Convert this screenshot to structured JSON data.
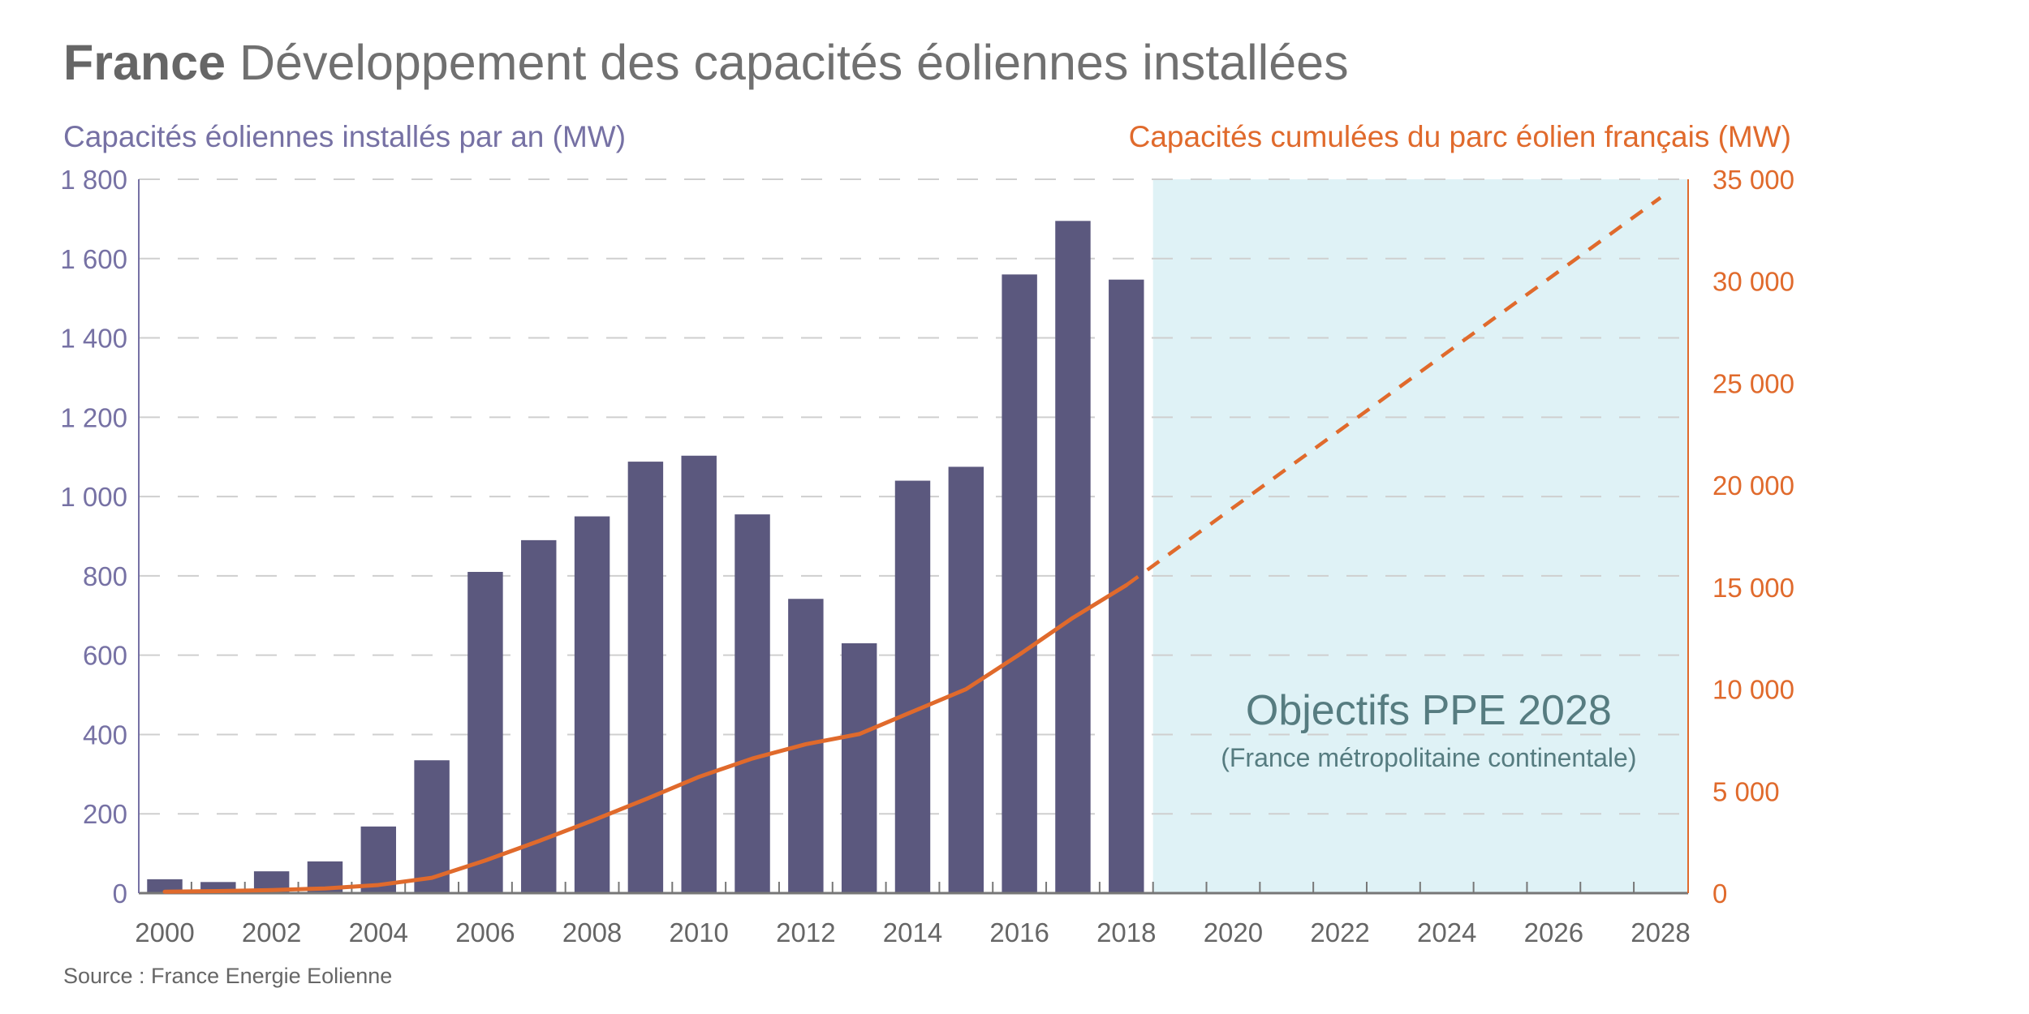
{
  "header": {
    "title_bold": "France",
    "title_rest": "Développement des capacités éoliennes installées",
    "left_axis_title": "Capacités éoliennes installés par an (MW)",
    "right_axis_title": "Capacités cumulées du parc éolien français (MW)",
    "source": "Source : France Energie Eolienne"
  },
  "colors": {
    "bars": "#5b587e",
    "line": "#e06a2c",
    "left_axis": "#7671a4",
    "shaded_region": "#dff2f6",
    "annotation": "#567c80"
  },
  "chart_data": {
    "type": "bar",
    "title": "France Développement des capacités éoliennes installées",
    "xlabel": "",
    "ylabel": "Capacités éoliennes installés par an (MW)",
    "y2label": "Capacités cumulées du parc éolien français (MW)",
    "x_range": [
      2000,
      2028
    ],
    "x_ticks": [
      "2000",
      "2002",
      "2004",
      "2006",
      "2008",
      "2010",
      "2012",
      "2014",
      "2016",
      "2018",
      "2020",
      "2022",
      "2024",
      "2026",
      "2028"
    ],
    "ylim": [
      0,
      1800
    ],
    "y_ticks": [
      "0",
      "200",
      "400",
      "600",
      "800",
      "1 000",
      "1 200",
      "1 400",
      "1 600",
      "1 800"
    ],
    "y_tick_values": [
      0,
      200,
      400,
      600,
      800,
      1000,
      1200,
      1400,
      1600,
      1800
    ],
    "y2lim": [
      0,
      35000
    ],
    "y2_ticks": [
      "0",
      "5 000",
      "10 000",
      "15 000",
      "20 000",
      "25 000",
      "30 000",
      "35 000"
    ],
    "y2_tick_values": [
      0,
      5000,
      10000,
      15000,
      20000,
      25000,
      30000,
      35000
    ],
    "grid": true,
    "categories": [
      2000,
      2001,
      2002,
      2003,
      2004,
      2005,
      2006,
      2007,
      2008,
      2009,
      2010,
      2011,
      2012,
      2013,
      2014,
      2015,
      2016,
      2017,
      2018
    ],
    "series": [
      {
        "name": "Capacités éoliennes installés par an (MW)",
        "type": "bar",
        "axis": "left",
        "values": [
          35,
          28,
          55,
          80,
          168,
          335,
          810,
          890,
          950,
          1088,
          1103,
          955,
          742,
          630,
          1040,
          1075,
          1560,
          1695,
          1547
        ]
      },
      {
        "name": "Capacités cumulées du parc éolien français (MW)",
        "type": "line",
        "axis": "right",
        "values": [
          70,
          100,
          150,
          230,
          400,
          750,
          1600,
          2550,
          3550,
          4600,
          5700,
          6600,
          7300,
          7800,
          8900,
          10000,
          11700,
          13500,
          15100
        ]
      },
      {
        "name": "Objectifs PPE 2028 (projection)",
        "type": "line-dashed",
        "axis": "right",
        "x": [
          2018,
          2028
        ],
        "values": [
          15100,
          34100
        ]
      }
    ],
    "shaded_region": {
      "from": 2018.5,
      "to": 2028.5
    },
    "annotations": [
      "Objectifs PPE 2028",
      "(France métropolitaine continentale)"
    ]
  }
}
